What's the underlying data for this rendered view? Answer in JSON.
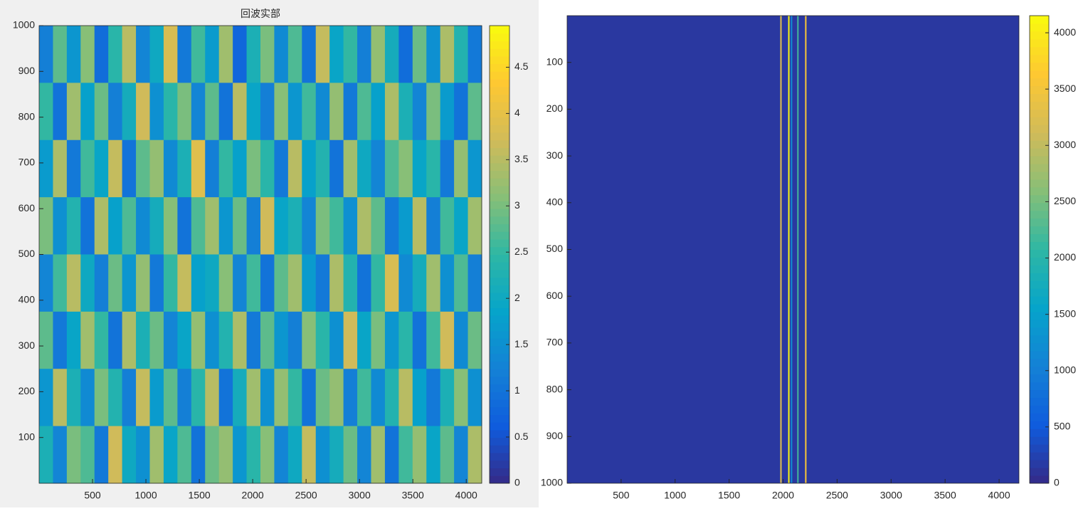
{
  "chart_data": [
    {
      "type": "heatmap",
      "title": "回波实部",
      "xlim": [
        0,
        4145
      ],
      "xticks": [
        500,
        1000,
        1500,
        2000,
        2500,
        3000,
        3500,
        4000
      ],
      "ylim": [
        0,
        1000
      ],
      "yticks": [
        100,
        200,
        300,
        400,
        500,
        600,
        700,
        800,
        900,
        1000
      ],
      "clim": [
        0,
        4.95
      ],
      "cticks": [
        0,
        0.5,
        1,
        1.5,
        2,
        2.5,
        3,
        3.5,
        4,
        4.5
      ],
      "colormap": [
        "#352a87",
        "#0f5cdd",
        "#1481d6",
        "#06a4ca",
        "#2eb7a4",
        "#87bf77",
        "#d1bb59",
        "#fec832",
        "#f9fb0e"
      ],
      "z": [
        [
          1.2,
          2.8,
          1.6,
          3.1,
          0.9,
          2.4,
          3.5,
          1.3,
          2.0,
          3.8,
          1.1,
          2.6,
          1.7,
          3.3,
          0.8,
          2.2,
          3.0,
          1.4,
          2.7,
          1.0,
          3.6,
          1.9,
          2.5,
          1.2,
          3.2,
          2.1,
          0.9,
          2.9,
          1.5,
          3.4,
          2.3,
          1.1
        ],
        [
          2.5,
          1.0,
          3.3,
          1.8,
          2.9,
          1.2,
          2.1,
          3.7,
          1.5,
          2.4,
          3.0,
          1.3,
          2.8,
          1.0,
          3.5,
          1.9,
          1.2,
          3.1,
          1.6,
          2.6,
          1.4,
          3.2,
          1.1,
          2.7,
          1.8,
          3.4,
          2.2,
          1.3,
          3.0,
          1.7,
          1.0,
          2.8
        ],
        [
          1.7,
          3.4,
          1.1,
          2.6,
          1.9,
          3.6,
          1.0,
          2.8,
          3.2,
          1.4,
          2.2,
          3.9,
          1.2,
          2.5,
          1.8,
          3.0,
          2.4,
          1.1,
          3.5,
          1.8,
          2.3,
          1.0,
          3.3,
          2.0,
          1.3,
          2.7,
          3.1,
          1.9,
          2.4,
          1.1,
          3.2,
          1.6
        ],
        [
          3.0,
          1.5,
          2.3,
          1.0,
          3.4,
          1.8,
          2.7,
          1.4,
          2.1,
          3.1,
          1.0,
          2.7,
          3.3,
          1.6,
          2.9,
          1.2,
          3.7,
          1.9,
          2.2,
          1.3,
          3.0,
          2.6,
          1.5,
          3.4,
          2.8,
          1.1,
          1.7,
          3.5,
          1.2,
          2.6,
          1.9,
          3.3
        ],
        [
          1.3,
          2.6,
          3.5,
          2.0,
          1.2,
          2.9,
          1.6,
          3.2,
          1.1,
          2.5,
          3.6,
          1.8,
          2.0,
          3.1,
          1.3,
          2.6,
          1.0,
          2.8,
          3.3,
          1.7,
          1.1,
          3.4,
          2.3,
          1.0,
          2.5,
          3.8,
          1.4,
          2.1,
          3.3,
          1.5,
          2.7,
          1.2
        ],
        [
          2.8,
          1.1,
          1.9,
          3.3,
          2.5,
          1.0,
          3.4,
          2.2,
          2.9,
          1.3,
          1.9,
          3.2,
          1.5,
          2.3,
          3.4,
          1.1,
          2.8,
          1.6,
          1.2,
          3.1,
          2.4,
          1.5,
          3.7,
          1.9,
          3.0,
          1.6,
          2.4,
          1.0,
          2.6,
          3.7,
          1.4,
          2.9
        ],
        [
          1.6,
          3.5,
          2.2,
          1.4,
          3.0,
          2.3,
          1.2,
          3.6,
          1.7,
          2.8,
          1.2,
          2.4,
          3.5,
          1.0,
          2.1,
          3.3,
          1.5,
          3.2,
          2.5,
          1.0,
          2.9,
          3.2,
          1.2,
          2.6,
          1.4,
          2.3,
          3.5,
          1.8,
          1.1,
          2.2,
          3.1,
          1.5
        ],
        [
          2.2,
          1.3,
          3.0,
          2.7,
          1.1,
          3.7,
          2.0,
          1.5,
          3.3,
          1.9,
          2.7,
          1.0,
          2.9,
          3.2,
          1.6,
          2.4,
          3.1,
          1.3,
          2.0,
          3.6,
          1.5,
          2.1,
          2.9,
          1.3,
          3.3,
          1.0,
          2.6,
          3.2,
          1.9,
          2.8,
          1.3,
          3.4
        ]
      ]
    },
    {
      "type": "lines-image",
      "xlim": [
        0,
        4184
      ],
      "xticks": [
        500,
        1000,
        1500,
        2000,
        2500,
        3000,
        3500,
        4000
      ],
      "ylim": [
        0,
        1000
      ],
      "yticks": [
        100,
        200,
        300,
        400,
        500,
        600,
        700,
        800,
        900,
        1000
      ],
      "yreverse": true,
      "clim": [
        0,
        4152
      ],
      "cticks": [
        0,
        500,
        1000,
        1500,
        2000,
        2500,
        3000,
        3500,
        4000
      ],
      "colormap": [
        "#352a87",
        "#0f5cdd",
        "#1481d6",
        "#06a4ca",
        "#2eb7a4",
        "#87bf77",
        "#d1bb59",
        "#fec832",
        "#f9fb0e"
      ],
      "background_value": 150,
      "x": [
        1980,
        2053,
        2078,
        2137,
        2210
      ],
      "values": [
        3300,
        4100,
        1200,
        2200,
        3600
      ]
    }
  ]
}
